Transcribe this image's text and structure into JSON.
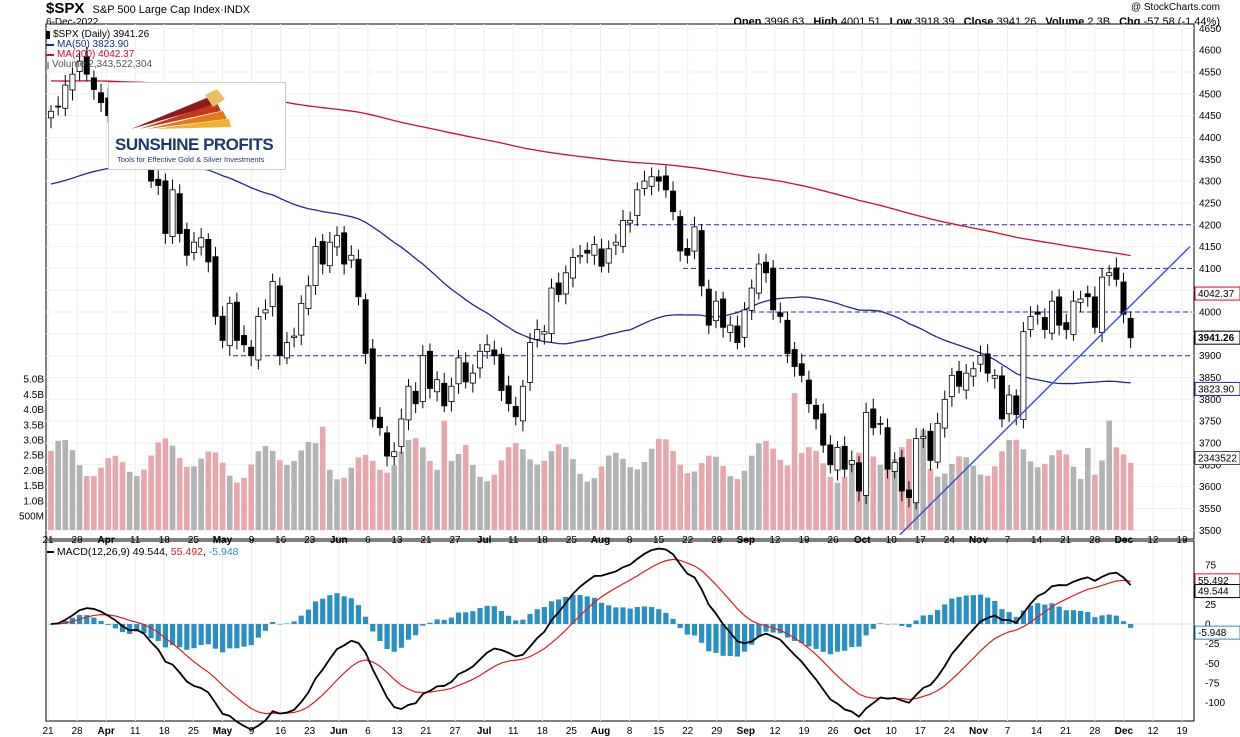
{
  "header": {
    "symbol": "$SPX",
    "name": "S&P 500 Large Cap Index",
    "exchange": "INDX",
    "date": "6-Dec-2022",
    "copyright": "@ StockCharts.com",
    "open_label": "Open",
    "open": "3996.63",
    "high_label": "High",
    "high": "4001.51",
    "low_label": "Low",
    "low": "3918.39",
    "close_label": "Close",
    "close": "3941.26",
    "volume_label": "Volume",
    "volume": "2.3B",
    "chg_label": "Chg",
    "chg": "-57.58 (-1.44%)"
  },
  "legend": {
    "price": "$SPX (Daily) 3941.26",
    "ma50": "MA(50) 3823.90",
    "ma200": "MA(200) 4042.37",
    "volume": "Volume 2,343,522,304"
  },
  "logo": {
    "name": "SUNSHINE PROFITS",
    "tagline": "Tools for Effective Gold & Silver Investments"
  },
  "macd_legend": {
    "label": "MACD(12,26,9)",
    "macd": "49.544",
    "signal": "55.492",
    "hist": "-5.948"
  },
  "colors": {
    "up": "#000000",
    "down": "#000000",
    "ma50": "#1f2a8c",
    "ma200": "#c8102e",
    "vol_up": "#b3b3b3",
    "vol_down": "#e8a7ad",
    "hist": "#2a8fc1",
    "macd": "#000000",
    "signal": "#d42020",
    "trendline": "#3050d8",
    "dashed": "#2a2ab0"
  },
  "chart_data": [
    {
      "type": "candlestick",
      "title": "$SPX (Daily)",
      "y_axis_price_ticks": [
        3500,
        3550,
        3600,
        3650,
        3700,
        3750,
        3800,
        3850,
        3900,
        3950,
        4000,
        4050,
        4100,
        4150,
        4200,
        4250,
        4300,
        4350,
        4400,
        4450,
        4500,
        4550,
        4600,
        4650
      ],
      "ylim": [
        3480,
        4660
      ],
      "volume_axis_ticks": [
        "500M",
        "1.0B",
        "1.5B",
        "2.0B",
        "2.5B",
        "3.0B",
        "3.5B",
        "4.0B",
        "4.5B",
        "5.0B"
      ],
      "x_tick_labels": [
        "21",
        "28",
        "Apr",
        "11",
        "18",
        "25",
        "May",
        "9",
        "16",
        "23",
        "Jun",
        "6",
        "13",
        "21",
        "27",
        "Jul",
        "11",
        "18",
        "25",
        "Aug",
        "8",
        "15",
        "22",
        "29",
        "Sep",
        "12",
        "19",
        "26",
        "Oct",
        "10",
        "17",
        "24",
        "Nov",
        "7",
        "14",
        "21",
        "28",
        "Dec",
        "12",
        "19"
      ],
      "price_tags": [
        {
          "label": "4042.37",
          "value": 4042.37,
          "series": "MA(200)"
        },
        {
          "label": "3941.26",
          "value": 3941.26,
          "series": "$SPX"
        },
        {
          "label": "3823.90",
          "value": 3823.9,
          "series": "MA(50)"
        },
        {
          "label": "2343522",
          "value": 2343522,
          "series": "Volume"
        }
      ],
      "horizontal_levels": [
        3900,
        4000,
        4100,
        4200
      ],
      "trendline": {
        "from": {
          "date": "Oct 13",
          "price": 3490
        },
        "to": {
          "date": "Dec 19",
          "price": 4150
        }
      },
      "close": [
        4460,
        4470,
        4520,
        4545,
        4575,
        4545,
        4510,
        4480,
        4450,
        4430,
        4395,
        4400,
        4460,
        4390,
        4300,
        4290,
        4180,
        4280,
        4180,
        4130,
        4160,
        4170,
        4115,
        3990,
        3935,
        4020,
        3935,
        3925,
        3900,
        3990,
        4005,
        4070,
        3900,
        3930,
        3945,
        4020,
        4060,
        4150,
        4110,
        4160,
        4175,
        4110,
        4130,
        4035,
        3905,
        3755,
        3735,
        3670,
        3680,
        3755,
        3830,
        3790,
        3900,
        3825,
        3845,
        3785,
        3830,
        3895,
        3840,
        3860,
        3910,
        3925,
        3900,
        3820,
        3790,
        3760,
        3830,
        3930,
        3960,
        3955,
        4055,
        4040,
        4090,
        4125,
        4130,
        4135,
        4155,
        4105,
        4145,
        4160,
        4210,
        4210,
        4280,
        4300,
        4310,
        4300,
        4280,
        4230,
        4140,
        4130,
        4195,
        4060,
        3970,
        4025,
        3965,
        3970,
        3930,
        4005,
        4055,
        4110,
        4090,
        4005,
        3990,
        3905,
        3875,
        3855,
        3790,
        3755,
        3695,
        3650,
        3690,
        3640,
        3660,
        3590,
        3770,
        3735,
        3745,
        3640,
        3655,
        3590,
        3575,
        3710,
        3715,
        3660,
        3745,
        3800,
        3855,
        3830,
        3860,
        3870,
        3900,
        3860,
        3855,
        3755,
        3810,
        3765,
        3955,
        3990,
        3995,
        3960,
        4025,
        3970,
        3960,
        4025,
        4030,
        4035,
        3965,
        4080,
        4090,
        4075,
        3995,
        3941
      ]
    },
    {
      "type": "macd",
      "name": "MACD(12,26,9)",
      "macd": 49.544,
      "signal": 55.492,
      "histogram": -5.948,
      "y_axis_ticks": [
        75,
        50,
        25,
        0,
        -25,
        -50,
        -75,
        -100
      ]
    }
  ]
}
